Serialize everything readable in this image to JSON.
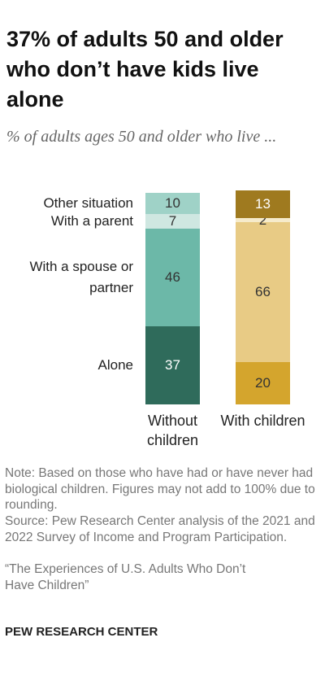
{
  "chart_data": {
    "type": "stacked-bar",
    "title": "37% of adults 50 and older who don’t have kids live alone",
    "subtitle": "% of adults ages 50 and older who live ...",
    "categories": [
      "Without children",
      "With children"
    ],
    "series": [
      {
        "name": "Alone",
        "colors": [
          "#2f6b5b",
          "#d4a52d"
        ],
        "values": [
          37,
          20
        ]
      },
      {
        "name": "With a spouse or partner",
        "colors": [
          "#6cb8a8",
          "#e8cb85"
        ],
        "values": [
          46,
          66
        ]
      },
      {
        "name": "With a parent",
        "colors": [
          "#cfe7e1",
          "#f6ebcb"
        ],
        "values": [
          7,
          2
        ]
      },
      {
        "name": "Other situation",
        "colors": [
          "#9fd2c7",
          "#9f7a1f"
        ],
        "values": [
          10,
          13
        ]
      }
    ],
    "note": "Note: Based on those who have had or have never had biological children. Figures may not add to 100% due to rounding.",
    "source": "Source: Pew Research Center analysis of the 2021 and 2022 Survey of Income and Program Participation.",
    "report": "“The Experiences of U.S. Adults Who Don’t Have Children”",
    "footer": "PEW RESEARCH CENTER"
  }
}
